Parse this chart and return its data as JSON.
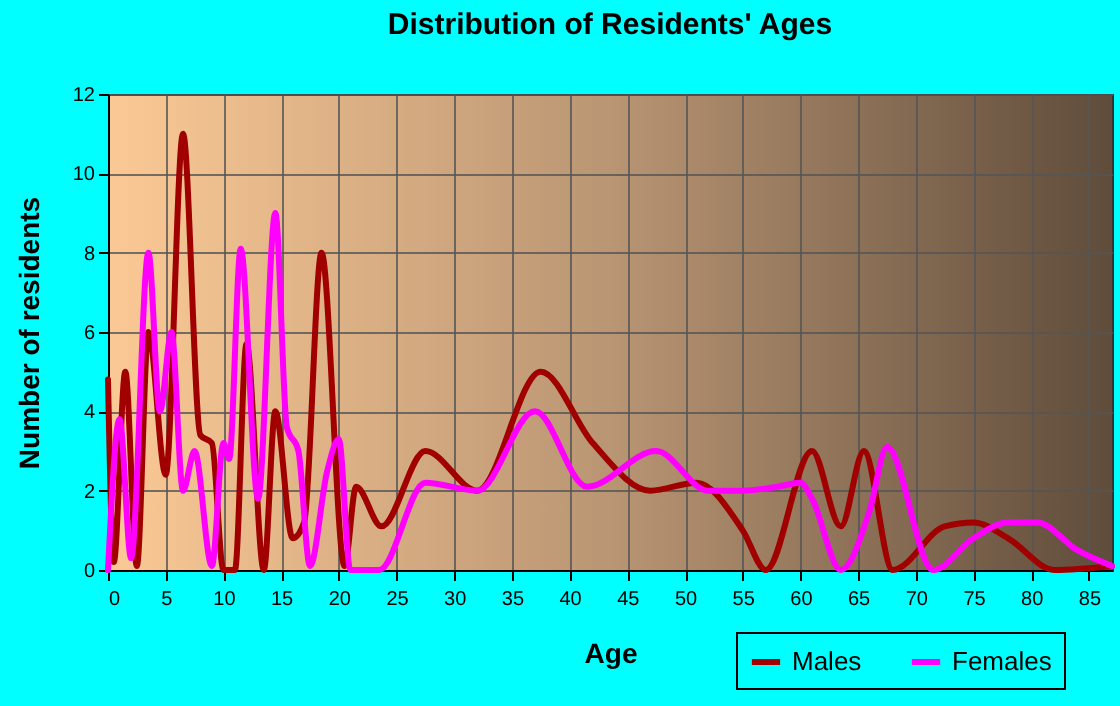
{
  "chart_data": {
    "type": "line",
    "title": "Distribution of Residents' Ages",
    "xlabel": "Age",
    "ylabel": "Number of residents",
    "xlim": [
      0,
      87
    ],
    "xticks": [
      0,
      5,
      10,
      15,
      20,
      25,
      30,
      35,
      40,
      45,
      50,
      55,
      60,
      65,
      70,
      75,
      80,
      85
    ],
    "ylim": [
      0,
      12
    ],
    "yticks": [
      0,
      2,
      4,
      6,
      8,
      10,
      12
    ],
    "grid": true,
    "legend": "bottom right",
    "marker": "none",
    "line_style": "solid",
    "series": [
      {
        "name": "Males",
        "color": "#a00000",
        "x": [
          0,
          0.5,
          1.5,
          2.5,
          3.5,
          5,
          6.5,
          8,
          9,
          10,
          11,
          12,
          13.5,
          14.5,
          16,
          17,
          18.5,
          20.5,
          21.5,
          23.7,
          27.5,
          32,
          37.5,
          42,
          47,
          51,
          55,
          57,
          61,
          63.5,
          65.5,
          68,
          72.5,
          75,
          78,
          82,
          87
        ],
        "values": [
          4.8,
          0.2,
          5,
          0.1,
          6,
          2.4,
          11,
          3.4,
          3.2,
          0,
          0,
          5.7,
          0,
          4,
          0.8,
          1.2,
          8,
          0.1,
          2.1,
          1.1,
          3,
          2,
          5,
          3.2,
          2,
          2.2,
          1,
          0,
          3,
          1.1,
          3,
          0,
          1.1,
          1.2,
          0.8,
          0,
          0.1
        ]
      },
      {
        "name": "Females",
        "color": "#ff00ff",
        "x": [
          0,
          1,
          2,
          3.5,
          4.5,
          5.5,
          6.5,
          7.5,
          9,
          10,
          10.5,
          11.5,
          13,
          14.5,
          15.5,
          16.5,
          17.5,
          19,
          20,
          21,
          23.5,
          27.5,
          32,
          37,
          41.5,
          47.5,
          52,
          55,
          58,
          60,
          61,
          63.5,
          66,
          67.5,
          71.5,
          75,
          78,
          80.5,
          84,
          87
        ],
        "values": [
          0,
          3.8,
          0.3,
          8,
          4,
          6,
          2,
          3,
          0.1,
          3.2,
          2.8,
          8.1,
          1.8,
          9,
          3.6,
          3,
          0.1,
          2.5,
          3.3,
          0,
          0,
          2.2,
          2,
          4,
          2.1,
          3,
          2,
          2,
          2.1,
          2.2,
          1.8,
          0,
          1.5,
          3.1,
          0,
          0.8,
          1.2,
          1.2,
          0.5,
          0.1
        ]
      }
    ]
  }
}
